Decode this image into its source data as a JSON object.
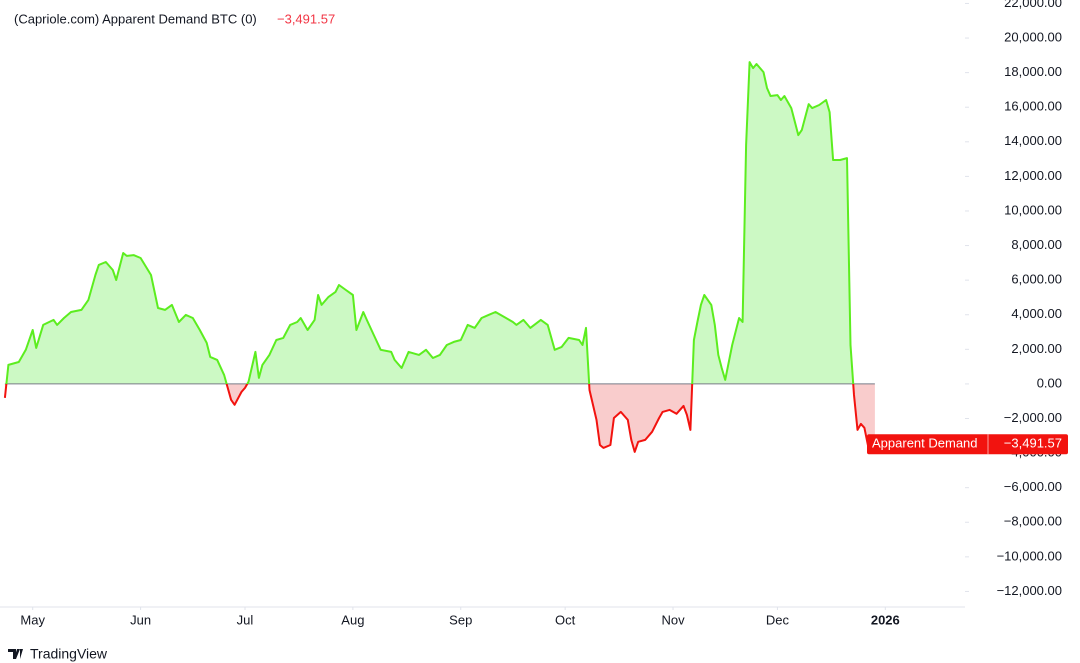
{
  "chart_data": {
    "type": "line",
    "title": "(Capriole.com) Apparent Demand BTC (0)",
    "last_value_label": "−3,491.57",
    "brand": "TradingView",
    "x": [
      0,
      1,
      4,
      6,
      8,
      9,
      11,
      14,
      15,
      17,
      19,
      22,
      24,
      26,
      27,
      29,
      31,
      32,
      34,
      35,
      37,
      39,
      42,
      44,
      46,
      48,
      50,
      52,
      54,
      56,
      58,
      59,
      61,
      63,
      65,
      66,
      68,
      69,
      70,
      72,
      73,
      74,
      76,
      78,
      80,
      82,
      84,
      85,
      87,
      89,
      90,
      91,
      93,
      95,
      96,
      98,
      100,
      101,
      103,
      104,
      106,
      108,
      111,
      112,
      114,
      116,
      119,
      121,
      123,
      125,
      127,
      129,
      131,
      133,
      135,
      137,
      139,
      141,
      144,
      146,
      147,
      149,
      151,
      154,
      156,
      158,
      160,
      162,
      165,
      166,
      167,
      168,
      170,
      171,
      172,
      174,
      175,
      177,
      179,
      180,
      181,
      182,
      184,
      186,
      188,
      189,
      191,
      193,
      195,
      196,
      197,
      198,
      199,
      200,
      201,
      203,
      204,
      205,
      206,
      207,
      209,
      211,
      212,
      213,
      214,
      215,
      216,
      218,
      219,
      220,
      222,
      223,
      224,
      226,
      228,
      229,
      231,
      232,
      234,
      236,
      237,
      238,
      240,
      242,
      243,
      244,
      245,
      246,
      247,
      248,
      250
    ],
    "series": [
      {
        "name": "Apparent Demand",
        "values": [
          -810,
          1100,
          1270,
          1970,
          3120,
          2080,
          3410,
          3700,
          3410,
          3810,
          4160,
          4280,
          4860,
          6300,
          6880,
          7050,
          6590,
          6010,
          7570,
          7400,
          7450,
          7280,
          6300,
          4390,
          4280,
          4570,
          3580,
          3990,
          3810,
          3120,
          2370,
          1560,
          1390,
          520,
          -920,
          -1210,
          -460,
          -230,
          120,
          1850,
          350,
          1100,
          1680,
          2540,
          2660,
          3410,
          3580,
          3810,
          3120,
          3700,
          5140,
          4570,
          5030,
          5320,
          5720,
          5430,
          5140,
          3120,
          4160,
          3700,
          2830,
          1970,
          1850,
          1390,
          920,
          1850,
          1680,
          1970,
          1500,
          1680,
          2250,
          2430,
          2540,
          3410,
          3240,
          3810,
          3990,
          4160,
          3810,
          3580,
          3410,
          3700,
          3240,
          3700,
          3410,
          1970,
          2140,
          2660,
          2540,
          2250,
          3240,
          -350,
          -2080,
          -3530,
          -3700,
          -3530,
          -1970,
          -1620,
          -2080,
          -3240,
          -3930,
          -3350,
          -3240,
          -2770,
          -1970,
          -1620,
          -1500,
          -1730,
          -1270,
          -1790,
          -2660,
          2540,
          3580,
          4570,
          5140,
          4570,
          3410,
          1680,
          920,
          230,
          2250,
          3810,
          3580,
          13810,
          18610,
          18260,
          18500,
          18030,
          17110,
          16650,
          16700,
          16420,
          16650,
          15950,
          14390,
          14680,
          16180,
          15950,
          16130,
          16420,
          15720,
          12950,
          12950,
          13060,
          2250,
          -640,
          -2660,
          -2310,
          -2540,
          -3530,
          -3491.57
        ]
      }
    ],
    "positive_color": "#5ced1f",
    "negative_color": "#f2130f",
    "positive_fill": "#ccf9c4",
    "negative_fill": "#f9cccc",
    "xlim": [
      -1.4,
      275.9
    ],
    "xticks": [
      {
        "value": 8,
        "label": "May"
      },
      {
        "value": 39,
        "label": "Jun"
      },
      {
        "value": 69,
        "label": "Jul"
      },
      {
        "value": 100,
        "label": "Aug"
      },
      {
        "value": 131,
        "label": "Sep"
      },
      {
        "value": 161,
        "label": "Oct"
      },
      {
        "value": 192,
        "label": "Nov"
      },
      {
        "value": 222,
        "label": "Dec"
      },
      {
        "value": 253,
        "label": "2026"
      }
    ],
    "ylim": [
      -12900,
      22200
    ],
    "yticks": [
      {
        "value": -12000,
        "label": "−12,000.00"
      },
      {
        "value": -10000,
        "label": "−10,000.00"
      },
      {
        "value": -8000,
        "label": "−8,000.00"
      },
      {
        "value": -6000,
        "label": "−6,000.00"
      },
      {
        "value": -4000,
        "label": "−4,000.00"
      },
      {
        "value": -2000,
        "label": "−2,000.00"
      },
      {
        "value": 0,
        "label": "0.00"
      },
      {
        "value": 2000,
        "label": "2,000.00"
      },
      {
        "value": 4000,
        "label": "4,000.00"
      },
      {
        "value": 6000,
        "label": "6,000.00"
      },
      {
        "value": 8000,
        "label": "8,000.00"
      },
      {
        "value": 10000,
        "label": "10,000.00"
      },
      {
        "value": 12000,
        "label": "12,000.00"
      },
      {
        "value": 14000,
        "label": "14,000.00"
      },
      {
        "value": 16000,
        "label": "16,000.00"
      },
      {
        "value": 18000,
        "label": "18,000.00"
      },
      {
        "value": 20000,
        "label": "20,000.00"
      },
      {
        "value": 22000,
        "label": "22,000.00"
      }
    ]
  }
}
